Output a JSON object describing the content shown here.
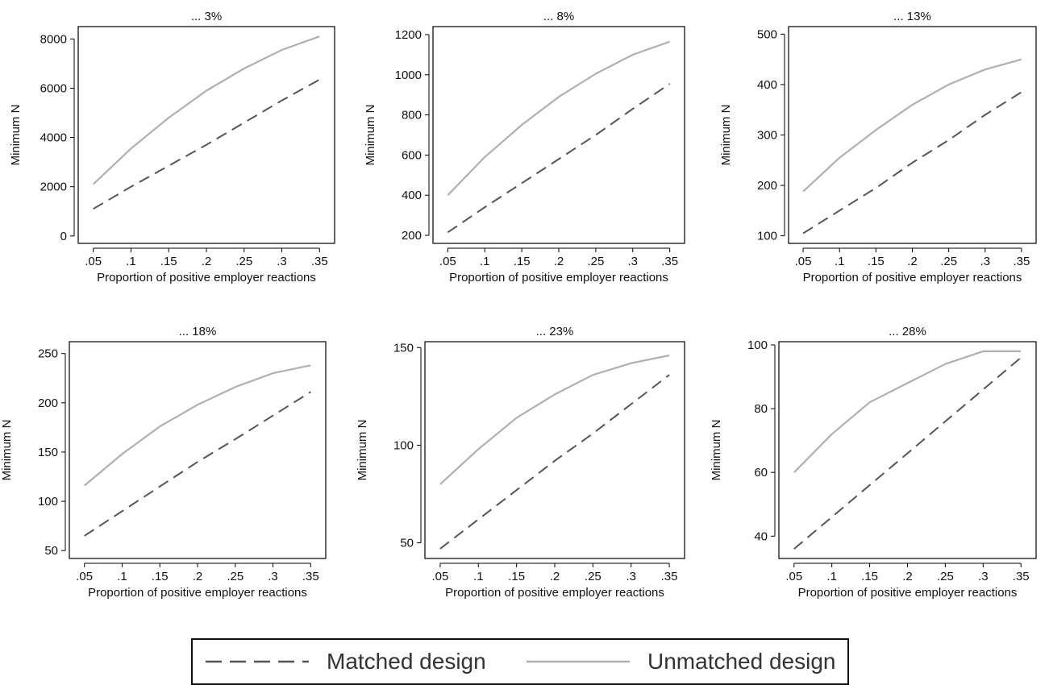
{
  "chart_data": [
    {
      "type": "line",
      "title": "... 3%",
      "xlabel": "Proportion of positive employer reactions",
      "ylabel": "Minimum N",
      "x": [
        0.05,
        0.1,
        0.15,
        0.2,
        0.25,
        0.3,
        0.35
      ],
      "xticks": [
        ".05",
        ".1",
        ".15",
        ".2",
        ".25",
        ".3",
        ".35"
      ],
      "xlim": [
        0.03,
        0.37
      ],
      "ylim": [
        -300,
        8500
      ],
      "yticks": [
        0,
        2000,
        4000,
        6000,
        8000
      ],
      "series": [
        {
          "name": "Matched design",
          "values": [
            1100,
            2000,
            2850,
            3700,
            4600,
            5500,
            6350
          ]
        },
        {
          "name": "Unmatched design",
          "values": [
            2100,
            3550,
            4800,
            5900,
            6800,
            7550,
            8100
          ]
        }
      ]
    },
    {
      "type": "line",
      "title": "... 8%",
      "xlabel": "Proportion of positive employer reactions",
      "ylabel": "Minimum N",
      "x": [
        0.05,
        0.1,
        0.15,
        0.2,
        0.25,
        0.3,
        0.35
      ],
      "xticks": [
        ".05",
        ".1",
        ".15",
        ".2",
        ".25",
        ".3",
        ".35"
      ],
      "xlim": [
        0.03,
        0.37
      ],
      "ylim": [
        160,
        1240
      ],
      "yticks": [
        200,
        400,
        600,
        800,
        1000,
        1200
      ],
      "series": [
        {
          "name": "Matched design",
          "values": [
            215,
            340,
            460,
            580,
            700,
            830,
            955
          ]
        },
        {
          "name": "Unmatched design",
          "values": [
            400,
            590,
            750,
            890,
            1005,
            1100,
            1165
          ]
        }
      ]
    },
    {
      "type": "line",
      "title": "... 13%",
      "xlabel": "Proportion of positive employer reactions",
      "ylabel": "Minimum N",
      "x": [
        0.05,
        0.1,
        0.15,
        0.2,
        0.25,
        0.3,
        0.35
      ],
      "xticks": [
        ".05",
        ".1",
        ".15",
        ".2",
        ".25",
        ".3",
        ".35"
      ],
      "xlim": [
        0.03,
        0.37
      ],
      "ylim": [
        85,
        515
      ],
      "yticks": [
        100,
        200,
        300,
        400,
        500
      ],
      "series": [
        {
          "name": "Matched design",
          "values": [
            105,
            150,
            195,
            245,
            290,
            340,
            385
          ]
        },
        {
          "name": "Unmatched design",
          "values": [
            188,
            255,
            310,
            360,
            400,
            430,
            450
          ]
        }
      ]
    },
    {
      "type": "line",
      "title": "... 18%",
      "xlabel": "Proportion of positive employer reactions",
      "ylabel": "Minimum N",
      "x": [
        0.05,
        0.1,
        0.15,
        0.2,
        0.25,
        0.3,
        0.35
      ],
      "xticks": [
        ".05",
        ".1",
        ".15",
        ".2",
        ".25",
        ".3",
        ".35"
      ],
      "xlim": [
        0.03,
        0.37
      ],
      "ylim": [
        42,
        262
      ],
      "yticks": [
        50,
        100,
        150,
        200,
        250
      ],
      "series": [
        {
          "name": "Matched design",
          "values": [
            65,
            90,
            115,
            140,
            163,
            187,
            211
          ]
        },
        {
          "name": "Unmatched design",
          "values": [
            116,
            148,
            176,
            198,
            216,
            230,
            238
          ]
        }
      ]
    },
    {
      "type": "line",
      "title": "... 23%",
      "xlabel": "Proportion of positive employer reactions",
      "ylabel": "Minimum N",
      "x": [
        0.05,
        0.1,
        0.15,
        0.2,
        0.25,
        0.3,
        0.35
      ],
      "xticks": [
        ".05",
        ".1",
        ".15",
        ".2",
        ".25",
        ".3",
        ".35"
      ],
      "xlim": [
        0.03,
        0.37
      ],
      "ylim": [
        42,
        153
      ],
      "yticks": [
        50,
        100,
        150
      ],
      "series": [
        {
          "name": "Matched design",
          "values": [
            47,
            62,
            77,
            92,
            106,
            121,
            136
          ]
        },
        {
          "name": "Unmatched design",
          "values": [
            80,
            98,
            114,
            126,
            136,
            142,
            146
          ]
        }
      ]
    },
    {
      "type": "line",
      "title": "... 28%",
      "xlabel": "Proportion of positive employer reactions",
      "ylabel": "Minimum N",
      "x": [
        0.05,
        0.1,
        0.15,
        0.2,
        0.25,
        0.3,
        0.35
      ],
      "xticks": [
        ".05",
        ".1",
        ".15",
        ".2",
        ".25",
        ".3",
        ".35"
      ],
      "xlim": [
        0.03,
        0.37
      ],
      "ylim": [
        33,
        101
      ],
      "yticks": [
        40,
        60,
        80,
        100
      ],
      "series": [
        {
          "name": "Matched design",
          "values": [
            36,
            46,
            56,
            66,
            76,
            86,
            96
          ]
        },
        {
          "name": "Unmatched design",
          "values": [
            60,
            72,
            82,
            88,
            94,
            98,
            98
          ]
        }
      ]
    }
  ],
  "legend": {
    "items": [
      {
        "name": "Matched design",
        "style": "dashed",
        "color": "#555555"
      },
      {
        "name": "Unmatched design",
        "style": "solid",
        "color": "#b0b0b0"
      }
    ]
  }
}
